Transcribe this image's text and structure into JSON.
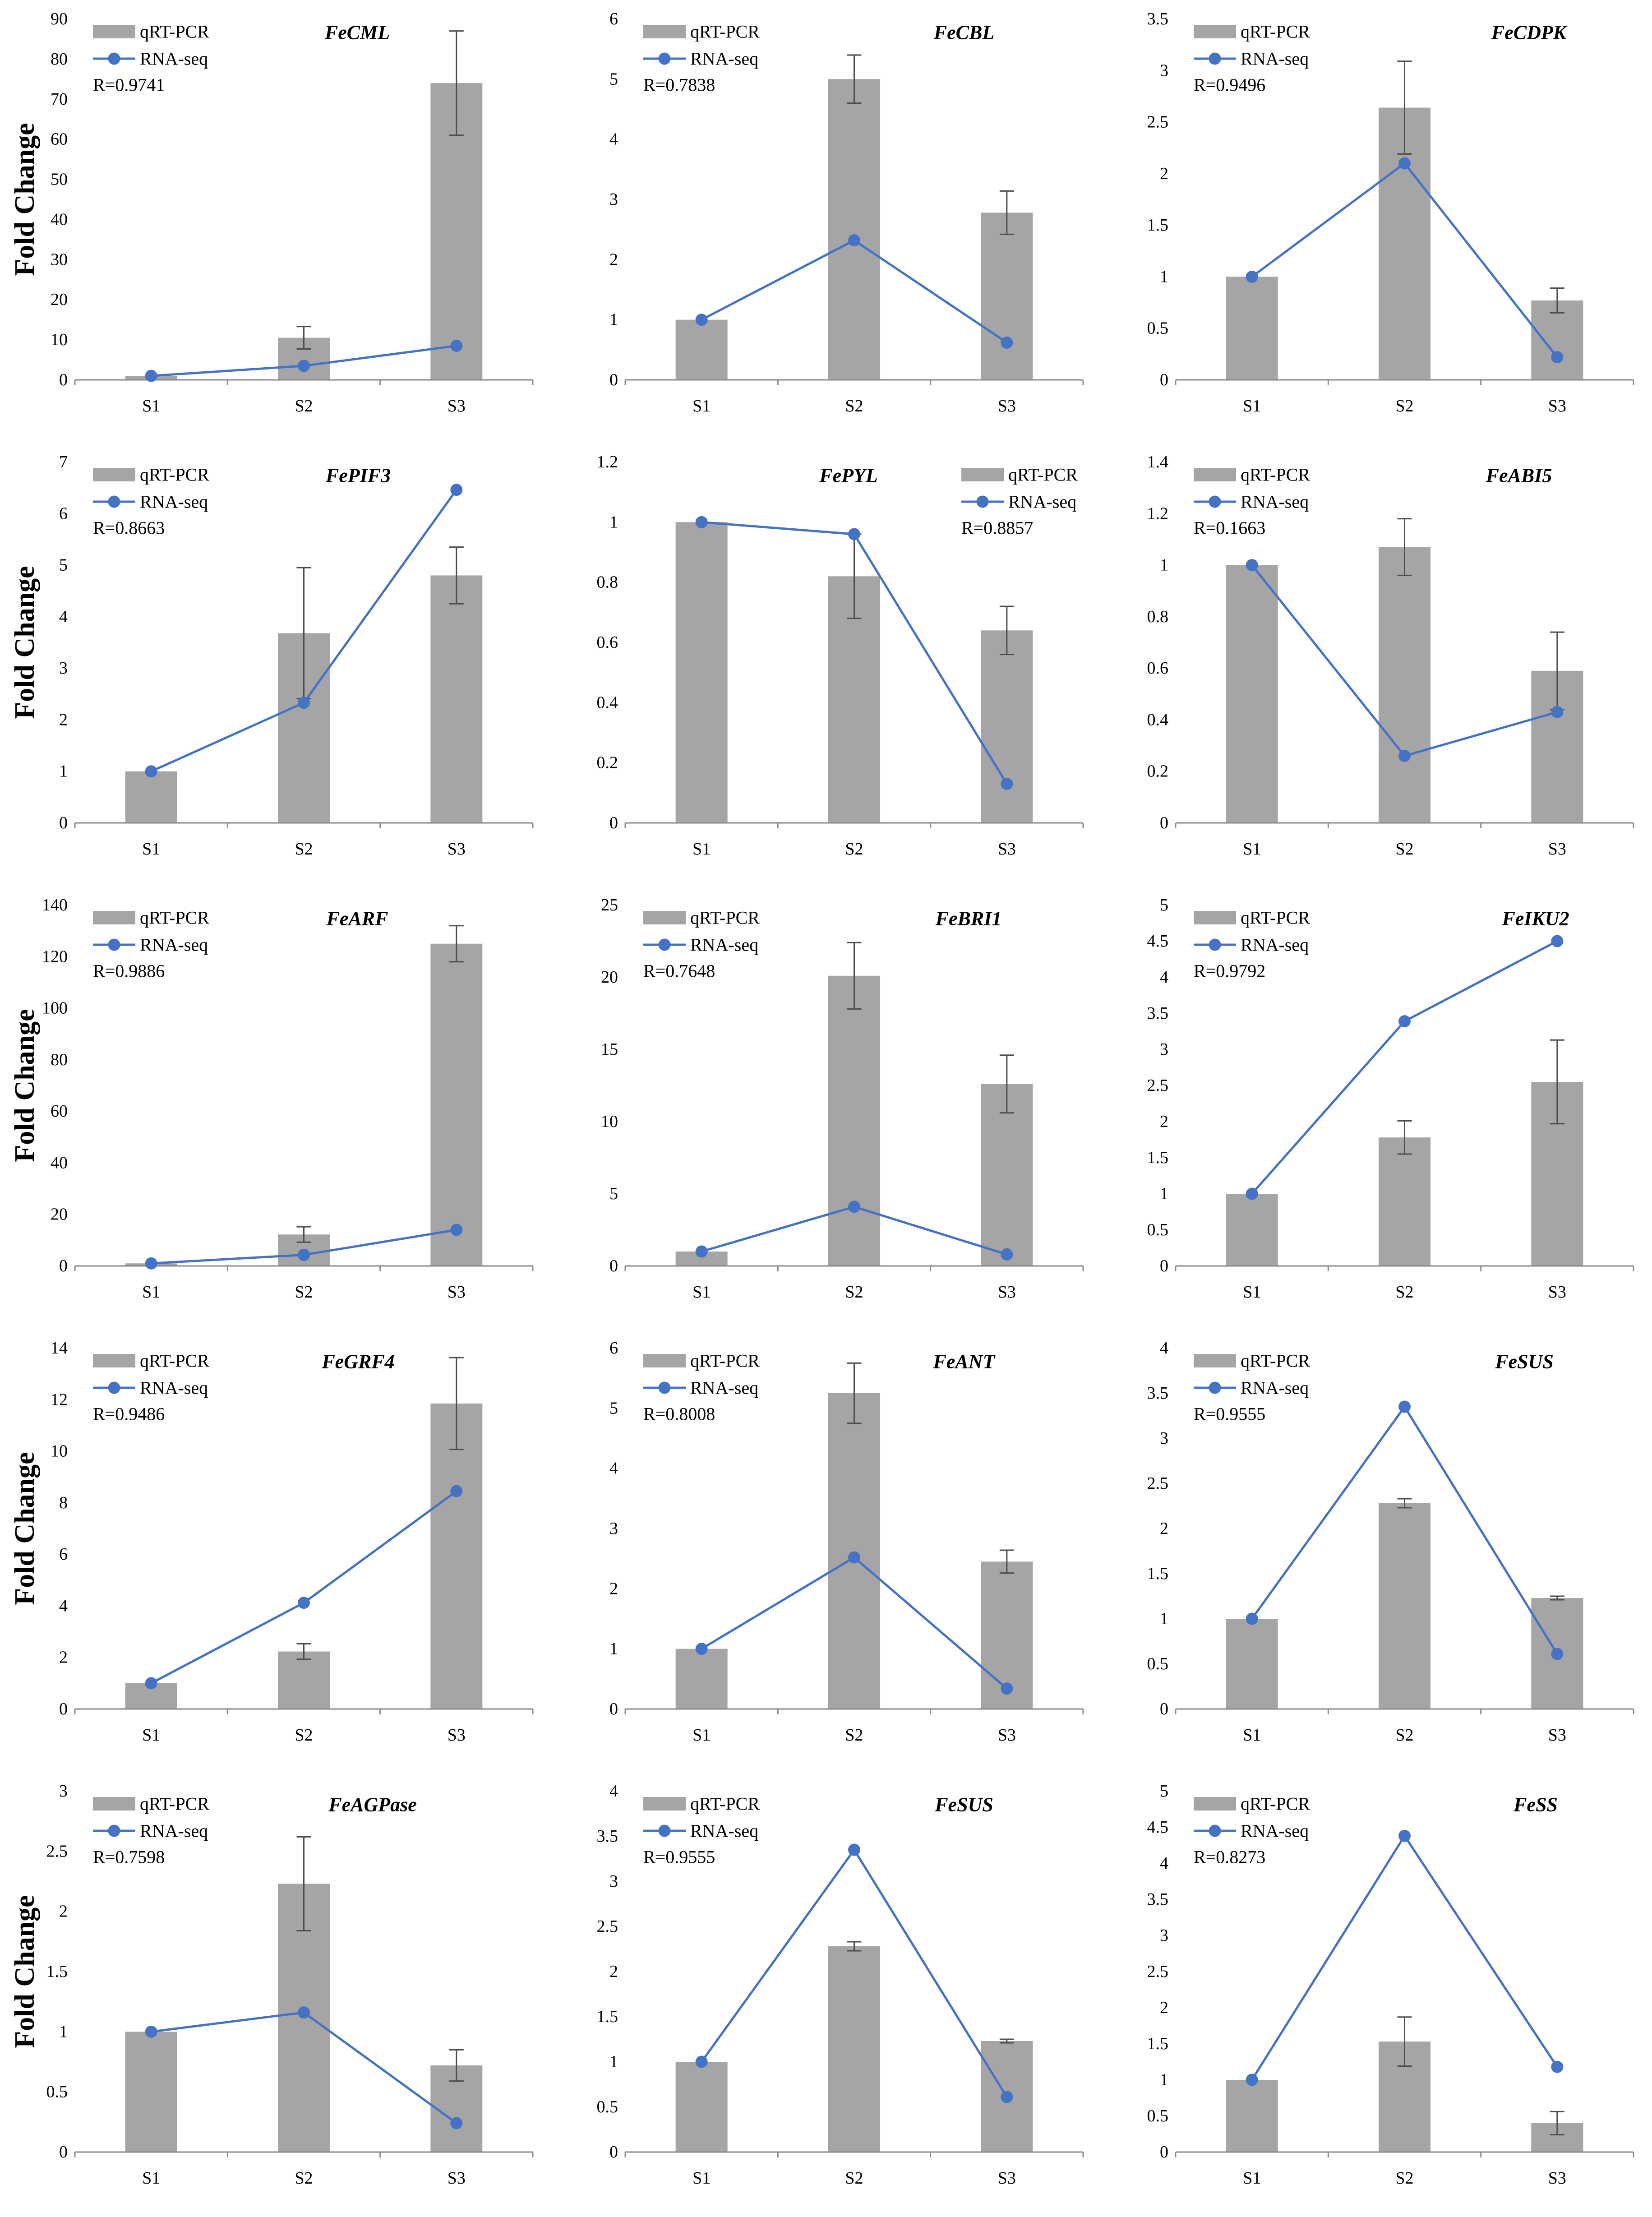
{
  "colors": {
    "bar": "#A5A5A5",
    "line": "#4472C4",
    "error": "#4D4D4D",
    "axis": "#8C8C8C"
  },
  "chart_data": [
    {
      "type": "bar",
      "title": "FeCML",
      "categories": [
        "S1",
        "S2",
        "S3"
      ],
      "series": [
        {
          "name": "qRT-PCR",
          "type": "bar",
          "values": [
            1,
            10.5,
            74
          ],
          "errors": [
            0,
            2.8,
            13
          ]
        },
        {
          "name": "RNA-seq",
          "type": "line",
          "values": [
            1,
            3.5,
            8.5
          ]
        }
      ],
      "annotation": "R=0.9741",
      "xlabel": "",
      "ylabel": "Fold Change",
      "ylim": [
        0,
        90
      ],
      "yticks": [
        0,
        10,
        20,
        30,
        40,
        50,
        60,
        70,
        80,
        90
      ],
      "legend": "top-left"
    },
    {
      "type": "bar",
      "title": "FeCBL",
      "categories": [
        "S1",
        "S2",
        "S3"
      ],
      "series": [
        {
          "name": "qRT-PCR",
          "type": "bar",
          "values": [
            1,
            5,
            2.78
          ],
          "errors": [
            0,
            0.4,
            0.36
          ]
        },
        {
          "name": "RNA-seq",
          "type": "line",
          "values": [
            1,
            2.32,
            0.62
          ]
        }
      ],
      "annotation": "R=0.7838",
      "xlabel": "",
      "ylabel": "",
      "ylim": [
        0,
        6
      ],
      "yticks": [
        0,
        1,
        2,
        3,
        4,
        5,
        6
      ],
      "legend": "top-left"
    },
    {
      "type": "bar",
      "title": "FeCDPK",
      "categories": [
        "S1",
        "S2",
        "S3"
      ],
      "series": [
        {
          "name": "qRT-PCR",
          "type": "bar",
          "values": [
            1,
            2.64,
            0.77
          ],
          "errors": [
            0,
            0.45,
            0.12
          ]
        },
        {
          "name": "RNA-seq",
          "type": "line",
          "values": [
            1,
            2.1,
            0.22
          ]
        }
      ],
      "annotation": "R=0.9496",
      "xlabel": "",
      "ylabel": "",
      "ylim": [
        0,
        3.5
      ],
      "yticks": [
        0,
        0.5,
        1,
        1.5,
        2,
        2.5,
        3,
        3.5
      ],
      "legend": "top-left"
    },
    {
      "type": "bar",
      "title": "FePIF3",
      "categories": [
        "S1",
        "S2",
        "S3"
      ],
      "series": [
        {
          "name": "qRT-PCR",
          "type": "bar",
          "values": [
            1,
            3.68,
            4.8
          ],
          "errors": [
            0,
            1.27,
            0.55
          ]
        },
        {
          "name": "RNA-seq",
          "type": "line",
          "values": [
            1,
            2.33,
            6.46
          ]
        }
      ],
      "annotation": "R=0.8663",
      "xlabel": "",
      "ylabel": "Fold Change",
      "ylim": [
        0,
        7
      ],
      "yticks": [
        0,
        1,
        2,
        3,
        4,
        5,
        6,
        7
      ],
      "legend": "top-left"
    },
    {
      "type": "bar",
      "title": "FePYL",
      "categories": [
        "S1",
        "S2",
        "S3"
      ],
      "series": [
        {
          "name": "qRT-PCR",
          "type": "bar",
          "values": [
            1,
            0.82,
            0.64
          ],
          "errors": [
            0,
            0.14,
            0.08
          ]
        },
        {
          "name": "RNA-seq",
          "type": "line",
          "values": [
            1,
            0.96,
            0.13
          ]
        }
      ],
      "annotation": "R=0.8857",
      "xlabel": "",
      "ylabel": "",
      "ylim": [
        0,
        1.2
      ],
      "yticks": [
        0,
        0.2,
        0.4,
        0.6,
        0.8,
        1,
        1.2
      ],
      "legend": "top-right"
    },
    {
      "type": "bar",
      "title": "FeABI5",
      "categories": [
        "S1",
        "S2",
        "S3"
      ],
      "series": [
        {
          "name": "qRT-PCR",
          "type": "bar",
          "values": [
            1,
            1.07,
            0.59
          ],
          "errors": [
            0,
            0.11,
            0.15
          ]
        },
        {
          "name": "RNA-seq",
          "type": "line",
          "values": [
            1,
            0.26,
            0.43
          ]
        }
      ],
      "annotation": "R=0.1663",
      "xlabel": "",
      "ylabel": "",
      "ylim": [
        0,
        1.4
      ],
      "yticks": [
        0,
        0.2,
        0.4,
        0.6,
        0.8,
        1,
        1.2,
        1.4
      ],
      "legend": "top-left"
    },
    {
      "type": "bar",
      "title": "FeARF",
      "categories": [
        "S1",
        "S2",
        "S3"
      ],
      "series": [
        {
          "name": "qRT-PCR",
          "type": "bar",
          "values": [
            1,
            12.2,
            125
          ],
          "errors": [
            0,
            3,
            7
          ]
        },
        {
          "name": "RNA-seq",
          "type": "line",
          "values": [
            1,
            4.3,
            14
          ]
        }
      ],
      "annotation": "R=0.9886",
      "xlabel": "",
      "ylabel": "Fold Change",
      "ylim": [
        0,
        140
      ],
      "yticks": [
        0,
        20,
        40,
        60,
        80,
        100,
        120,
        140
      ],
      "legend": "top-left"
    },
    {
      "type": "bar",
      "title": "FeBRI1",
      "categories": [
        "S1",
        "S2",
        "S3"
      ],
      "series": [
        {
          "name": "qRT-PCR",
          "type": "bar",
          "values": [
            1,
            20.1,
            12.6
          ],
          "errors": [
            0,
            2.3,
            2
          ]
        },
        {
          "name": "RNA-seq",
          "type": "line",
          "values": [
            1,
            4.1,
            0.8
          ]
        }
      ],
      "annotation": "R=0.7648",
      "xlabel": "",
      "ylabel": "",
      "ylim": [
        0,
        25
      ],
      "yticks": [
        0,
        5,
        10,
        15,
        20,
        25
      ],
      "legend": "top-left"
    },
    {
      "type": "bar",
      "title": "FeIKU2",
      "categories": [
        "S1",
        "S2",
        "S3"
      ],
      "series": [
        {
          "name": "qRT-PCR",
          "type": "bar",
          "values": [
            1,
            1.78,
            2.55
          ],
          "errors": [
            0,
            0.23,
            0.58
          ]
        },
        {
          "name": "RNA-seq",
          "type": "line",
          "values": [
            1,
            3.39,
            4.5
          ]
        }
      ],
      "annotation": "R=0.9792",
      "xlabel": "",
      "ylabel": "",
      "ylim": [
        0,
        5
      ],
      "yticks": [
        0,
        0.5,
        1,
        1.5,
        2,
        2.5,
        3,
        3.5,
        4,
        4.5,
        5
      ],
      "legend": "top-left"
    },
    {
      "type": "bar",
      "title": "FeGRF4",
      "categories": [
        "S1",
        "S2",
        "S3"
      ],
      "series": [
        {
          "name": "qRT-PCR",
          "type": "bar",
          "values": [
            1,
            2.23,
            11.85
          ],
          "errors": [
            0,
            0.3,
            1.78
          ]
        },
        {
          "name": "RNA-seq",
          "type": "line",
          "values": [
            1,
            4.12,
            8.45
          ]
        }
      ],
      "annotation": "R=0.9486",
      "xlabel": "",
      "ylabel": "Fold Change",
      "ylim": [
        0,
        14
      ],
      "yticks": [
        0,
        2,
        4,
        6,
        8,
        10,
        12,
        14
      ],
      "legend": "top-left"
    },
    {
      "type": "bar",
      "title": "FeANT",
      "categories": [
        "S1",
        "S2",
        "S3"
      ],
      "series": [
        {
          "name": "qRT-PCR",
          "type": "bar",
          "values": [
            1,
            5.25,
            2.45
          ],
          "errors": [
            0,
            0.5,
            0.19
          ]
        },
        {
          "name": "RNA-seq",
          "type": "line",
          "values": [
            1,
            2.52,
            0.34
          ]
        }
      ],
      "annotation": "R=0.8008",
      "xlabel": "",
      "ylabel": "",
      "ylim": [
        0,
        6
      ],
      "yticks": [
        0,
        1,
        2,
        3,
        4,
        5,
        6
      ],
      "legend": "top-left"
    },
    {
      "type": "bar",
      "title": "FeSUS",
      "categories": [
        "S1",
        "S2",
        "S3"
      ],
      "series": [
        {
          "name": "qRT-PCR",
          "type": "bar",
          "values": [
            1,
            2.28,
            1.23
          ],
          "errors": [
            0,
            0.05,
            0.02
          ]
        },
        {
          "name": "RNA-seq",
          "type": "line",
          "values": [
            1,
            3.35,
            0.61
          ]
        }
      ],
      "annotation": "R=0.9555",
      "xlabel": "",
      "ylabel": "",
      "ylim": [
        0,
        4
      ],
      "yticks": [
        0,
        0.5,
        1,
        1.5,
        2,
        2.5,
        3,
        3.5,
        4
      ],
      "legend": "top-left"
    },
    {
      "type": "bar",
      "title": "FeAGPase",
      "categories": [
        "S1",
        "S2",
        "S3"
      ],
      "series": [
        {
          "name": "qRT-PCR",
          "type": "bar",
          "values": [
            1,
            2.23,
            0.72
          ],
          "errors": [
            0,
            0.39,
            0.13
          ]
        },
        {
          "name": "RNA-seq",
          "type": "line",
          "values": [
            1,
            1.16,
            0.24
          ]
        }
      ],
      "annotation": "R=0.7598",
      "xlabel": "",
      "ylabel": "Fold Change",
      "ylim": [
        0,
        3
      ],
      "yticks": [
        0,
        0.5,
        1,
        1.5,
        2,
        2.5,
        3
      ],
      "legend": "top-left"
    },
    {
      "type": "bar",
      "title": "FeSUS",
      "categories": [
        "S1",
        "S2",
        "S3"
      ],
      "series": [
        {
          "name": "qRT-PCR",
          "type": "bar",
          "values": [
            1,
            2.28,
            1.23
          ],
          "errors": [
            0,
            0.05,
            0.02
          ]
        },
        {
          "name": "RNA-seq",
          "type": "line",
          "values": [
            1,
            3.35,
            0.61
          ]
        }
      ],
      "annotation": "R=0.9555",
      "xlabel": "",
      "ylabel": "",
      "ylim": [
        0,
        4
      ],
      "yticks": [
        0,
        0.5,
        1,
        1.5,
        2,
        2.5,
        3,
        3.5,
        4
      ],
      "legend": "top-left"
    },
    {
      "type": "bar",
      "title": "FeSS",
      "categories": [
        "S1",
        "S2",
        "S3"
      ],
      "series": [
        {
          "name": "qRT-PCR",
          "type": "bar",
          "values": [
            1,
            1.53,
            0.4
          ],
          "errors": [
            0,
            0.34,
            0.16
          ]
        },
        {
          "name": "RNA-seq",
          "type": "line",
          "values": [
            1,
            4.38,
            1.18
          ]
        }
      ],
      "annotation": "R=0.8273",
      "xlabel": "",
      "ylabel": "",
      "ylim": [
        0,
        5
      ],
      "yticks": [
        0,
        0.5,
        1,
        1.5,
        2,
        2.5,
        3,
        3.5,
        4,
        4.5,
        5
      ],
      "legend": "top-left"
    }
  ]
}
